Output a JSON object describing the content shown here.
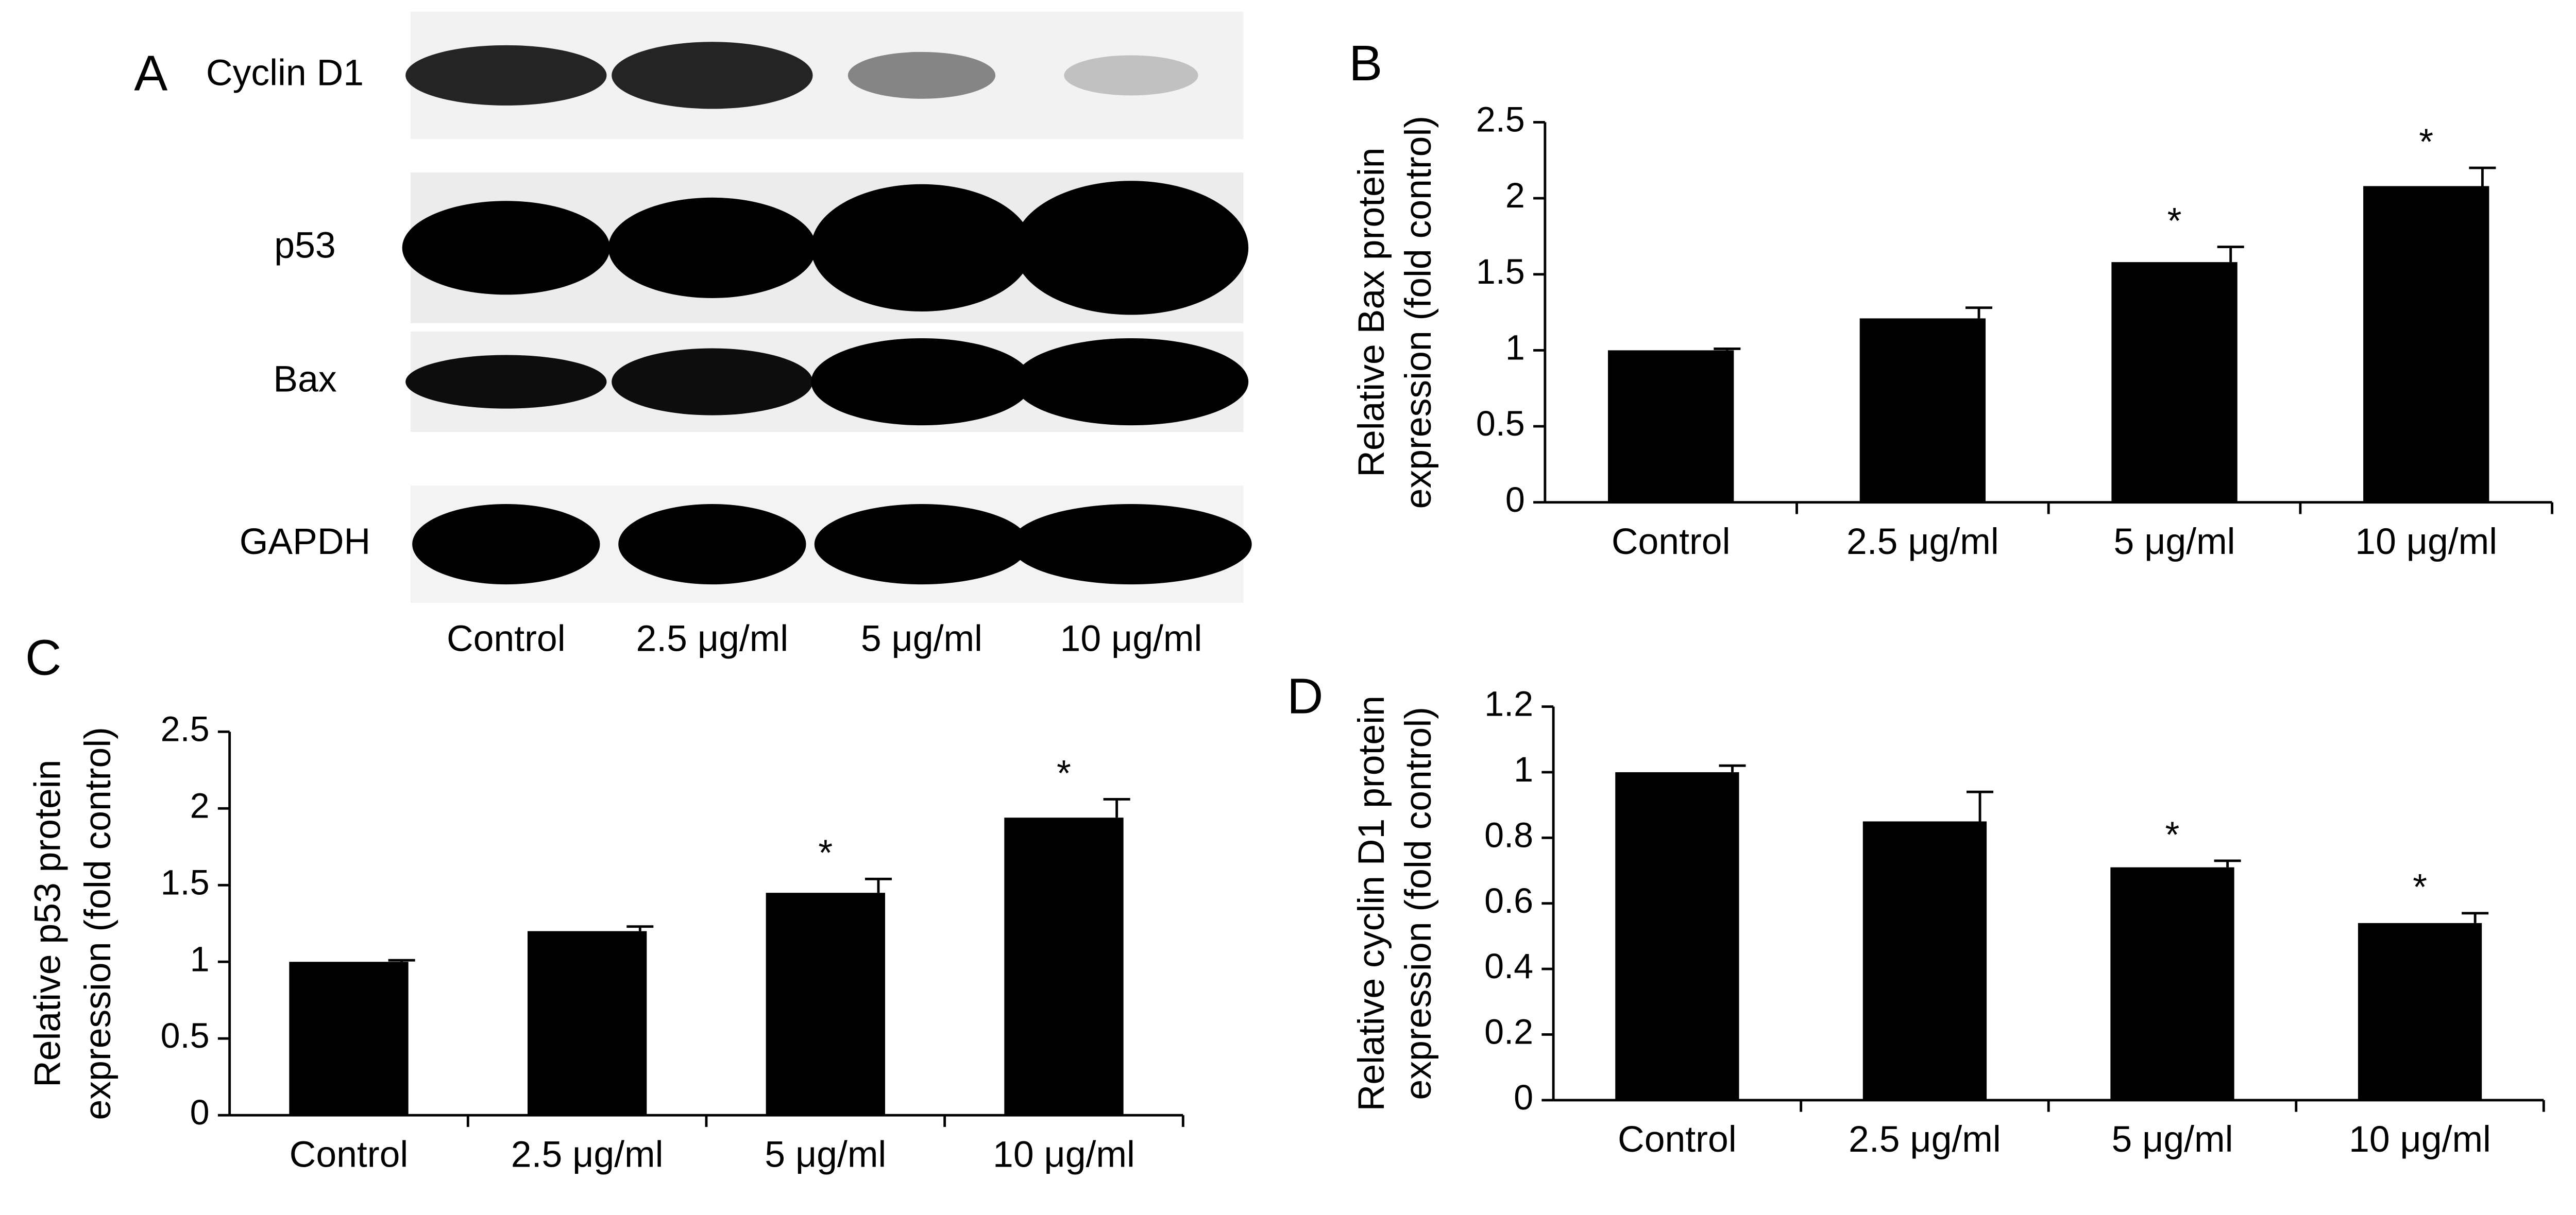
{
  "blot": {
    "label": "A",
    "proteins": [
      "Cyclin D1",
      "p53",
      "Bax",
      "GAPDH"
    ],
    "lanes": [
      "Control",
      "2.5 μg/ml",
      "5 μg/ml",
      "10 μg/ml"
    ]
  },
  "chart_data": [
    {
      "type": "bar",
      "panel": "B",
      "ylabel": [
        "Relative Bax protein",
        "expression (fold control)"
      ],
      "categories": [
        "Control",
        "2.5 μg/ml",
        "5 μg/ml",
        "10 μg/ml"
      ],
      "values": [
        1.0,
        1.21,
        1.58,
        2.08
      ],
      "errors": [
        0.01,
        0.07,
        0.1,
        0.12
      ],
      "annotations": [
        null,
        null,
        "*",
        "*"
      ],
      "color": "#000000",
      "ylim": [
        0,
        2.5
      ],
      "yticks": [
        0,
        0.5,
        1,
        1.5,
        2,
        2.5
      ]
    },
    {
      "type": "bar",
      "panel": "C",
      "ylabel": [
        "Relative p53 protein",
        "expression (fold control)"
      ],
      "categories": [
        "Control",
        "2.5 μg/ml",
        "5 μg/ml",
        "10 μg/ml"
      ],
      "values": [
        1.0,
        1.2,
        1.45,
        1.94
      ],
      "errors": [
        0.01,
        0.03,
        0.09,
        0.12
      ],
      "annotations": [
        null,
        null,
        "*",
        "*"
      ],
      "color": "#000000",
      "ylim": [
        0,
        2.5
      ],
      "yticks": [
        0,
        0.5,
        1,
        1.5,
        2,
        2.5
      ]
    },
    {
      "type": "bar",
      "panel": "D",
      "ylabel": [
        "Relative cyclin D1 protein",
        "expression (fold control)"
      ],
      "categories": [
        "Control",
        "2.5 μg/ml",
        "5 μg/ml",
        "10 μg/ml"
      ],
      "values": [
        1.0,
        0.85,
        0.71,
        0.54
      ],
      "errors": [
        0.02,
        0.09,
        0.02,
        0.03
      ],
      "annotations": [
        null,
        null,
        "*",
        "*"
      ],
      "color": "#000000",
      "ylim": [
        0,
        1.2
      ],
      "yticks": [
        0,
        0.2,
        0.4,
        0.6,
        0.8,
        1,
        1.2
      ]
    }
  ]
}
